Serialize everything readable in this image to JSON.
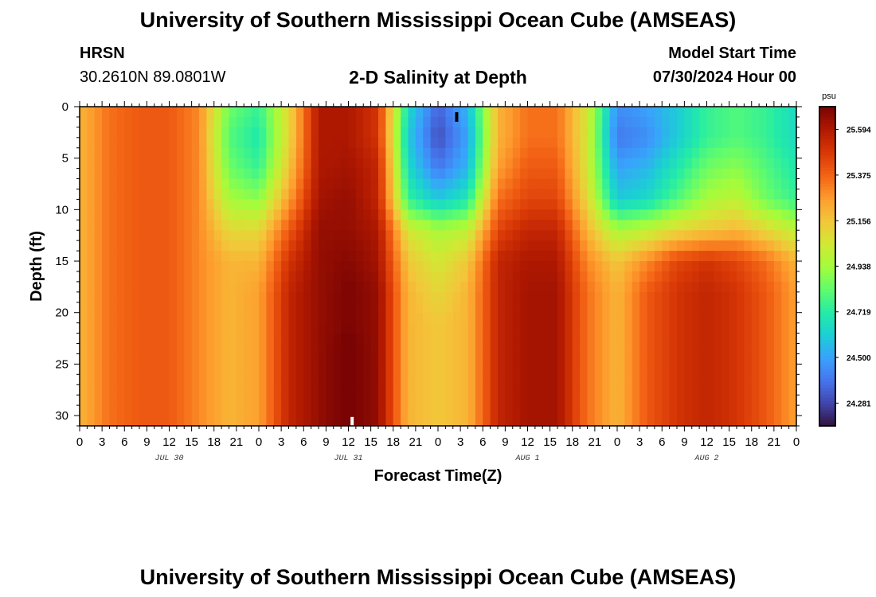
{
  "header": {
    "title": "University of Southern Mississippi Ocean Cube (AMSEAS)",
    "station": "HRSN",
    "coords": "30.2610N  89.0801W",
    "plot_title": "2-D Salinity at Depth",
    "model_start_label": "Model Start Time",
    "model_start_value": "07/30/2024 Hour 00"
  },
  "footer": {
    "title": "University of Southern Mississippi Ocean Cube (AMSEAS)"
  },
  "colors": {
    "background": "#ffffff",
    "frame": "#000000",
    "ramp": [
      "#30123b",
      "#4145ab",
      "#4675ed",
      "#39a2fc",
      "#1bcfd4",
      "#24eca6",
      "#61fc6c",
      "#a4fc3b",
      "#d1e834",
      "#f3c63a",
      "#fe9b2d",
      "#f36315",
      "#d93806",
      "#b11901",
      "#7a0403"
    ]
  },
  "chart_data": {
    "type": "heatmap",
    "title": "2-D Salinity at Depth",
    "xlabel": "Forecast Time(Z)",
    "ylabel": "Depth (ft)",
    "units": "psu",
    "xlim": [
      0,
      96
    ],
    "ylim": [
      31,
      0
    ],
    "x_ticks": [
      0,
      3,
      6,
      9,
      12,
      15,
      18,
      21,
      24,
      27,
      30,
      33,
      36,
      39,
      42,
      45,
      48,
      51,
      54,
      57,
      60,
      63,
      66,
      69,
      72,
      75,
      78,
      81,
      84,
      87,
      90,
      93,
      96
    ],
    "x_tick_labels": [
      "0",
      "3",
      "6",
      "9",
      "12",
      "15",
      "18",
      "21",
      "0",
      "3",
      "6",
      "9",
      "12",
      "15",
      "18",
      "21",
      "0",
      "3",
      "6",
      "9",
      "12",
      "15",
      "18",
      "21",
      "0",
      "3",
      "6",
      "9",
      "12",
      "15",
      "18",
      "21",
      "0"
    ],
    "y_ticks": [
      0,
      5,
      10,
      15,
      20,
      25,
      30
    ],
    "y_tick_labels": [
      "0",
      "5",
      "10",
      "15",
      "20",
      "25",
      "30"
    ],
    "date_labels": [
      {
        "x": 12,
        "label": "JUL 30"
      },
      {
        "x": 36,
        "label": "JUL 31"
      },
      {
        "x": 60,
        "label": "AUG 1"
      },
      {
        "x": 84,
        "label": "AUG 2"
      }
    ],
    "colorbar": {
      "min": 24.172,
      "max": 25.703,
      "labels": [
        "25.594",
        "25.375",
        "25.156",
        "24.938",
        "24.719",
        "24.500",
        "24.281"
      ],
      "values": [
        25.594,
        25.375,
        25.156,
        24.938,
        24.719,
        24.5,
        24.281
      ]
    },
    "depths": [
      0,
      3,
      6,
      9,
      12,
      15,
      18,
      21,
      24,
      27,
      31
    ],
    "times": [
      0,
      4,
      8,
      12,
      16,
      20,
      24,
      28,
      32,
      36,
      40,
      44,
      48,
      52,
      56,
      60,
      64,
      68,
      72,
      76,
      80,
      84,
      88,
      92,
      96
    ],
    "salinity": [
      [
        25.2,
        25.35,
        25.4,
        25.4,
        25.3,
        24.85,
        24.75,
        25.1,
        25.6,
        25.6,
        25.5,
        24.65,
        24.35,
        24.55,
        25.2,
        25.35,
        25.35,
        25.05,
        24.45,
        24.5,
        24.6,
        24.75,
        24.8,
        24.75,
        24.65
      ],
      [
        25.2,
        25.35,
        25.4,
        25.4,
        25.3,
        24.8,
        24.7,
        25.1,
        25.6,
        25.6,
        25.5,
        24.6,
        24.3,
        24.5,
        25.2,
        25.35,
        25.35,
        25.05,
        24.4,
        24.45,
        24.6,
        24.75,
        24.8,
        24.75,
        24.65
      ],
      [
        25.2,
        25.35,
        25.4,
        25.4,
        25.3,
        24.85,
        24.75,
        25.15,
        25.6,
        25.62,
        25.55,
        24.65,
        24.4,
        24.55,
        25.25,
        25.4,
        25.4,
        25.05,
        24.5,
        24.55,
        24.7,
        24.85,
        24.9,
        24.8,
        24.7
      ],
      [
        25.2,
        25.35,
        25.4,
        25.4,
        25.3,
        24.95,
        24.9,
        25.25,
        25.62,
        25.65,
        25.55,
        24.75,
        24.6,
        24.7,
        25.35,
        25.45,
        25.45,
        25.1,
        24.6,
        24.65,
        24.8,
        24.95,
        25.0,
        24.85,
        24.75
      ],
      [
        25.2,
        25.35,
        25.4,
        25.4,
        25.3,
        25.1,
        25.1,
        25.4,
        25.65,
        25.65,
        25.6,
        25.05,
        24.95,
        25.0,
        25.45,
        25.55,
        25.55,
        25.2,
        24.95,
        25.0,
        25.1,
        25.15,
        25.2,
        25.1,
        25.0
      ],
      [
        25.2,
        25.35,
        25.4,
        25.4,
        25.3,
        25.2,
        25.2,
        25.5,
        25.65,
        25.68,
        25.62,
        25.15,
        25.05,
        25.15,
        25.55,
        25.6,
        25.6,
        25.3,
        25.15,
        25.3,
        25.45,
        25.5,
        25.45,
        25.35,
        25.2
      ],
      [
        25.2,
        25.35,
        25.4,
        25.4,
        25.3,
        25.2,
        25.25,
        25.55,
        25.65,
        25.7,
        25.65,
        25.2,
        25.1,
        25.2,
        25.55,
        25.62,
        25.62,
        25.35,
        25.2,
        25.4,
        25.5,
        25.55,
        25.5,
        25.4,
        25.25
      ],
      [
        25.2,
        25.35,
        25.4,
        25.4,
        25.3,
        25.2,
        25.25,
        25.55,
        25.65,
        25.7,
        25.65,
        25.2,
        25.15,
        25.2,
        25.55,
        25.62,
        25.62,
        25.35,
        25.2,
        25.4,
        25.5,
        25.55,
        25.5,
        25.4,
        25.25
      ],
      [
        25.2,
        25.35,
        25.4,
        25.4,
        25.3,
        25.2,
        25.25,
        25.55,
        25.65,
        25.72,
        25.65,
        25.2,
        25.15,
        25.2,
        25.55,
        25.62,
        25.62,
        25.35,
        25.2,
        25.4,
        25.5,
        25.55,
        25.5,
        25.4,
        25.25
      ],
      [
        25.2,
        25.35,
        25.4,
        25.4,
        25.3,
        25.2,
        25.25,
        25.55,
        25.65,
        25.72,
        25.65,
        25.2,
        25.15,
        25.2,
        25.55,
        25.62,
        25.62,
        25.35,
        25.2,
        25.4,
        25.5,
        25.55,
        25.5,
        25.4,
        25.25
      ],
      [
        25.2,
        25.35,
        25.4,
        25.4,
        25.3,
        25.2,
        25.25,
        25.55,
        25.65,
        25.72,
        25.65,
        25.2,
        25.15,
        25.2,
        25.55,
        25.62,
        25.62,
        25.35,
        25.2,
        25.4,
        25.5,
        25.55,
        25.5,
        25.4,
        25.25
      ]
    ],
    "markers": [
      {
        "x": 50.5,
        "y": 1.0,
        "color": "#000000"
      },
      {
        "x": 36.5,
        "y": 30.6,
        "color": "#ffffff"
      }
    ]
  }
}
